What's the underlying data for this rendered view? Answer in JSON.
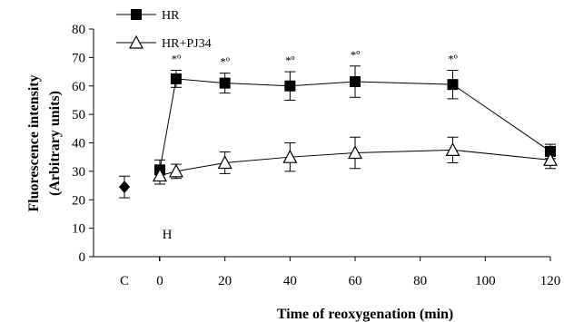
{
  "chart_data": {
    "type": "line",
    "xlabel": "Time of reoxygenation (min)",
    "ylabel": [
      "Fluorescence intensity",
      "(Arbitrary units)"
    ],
    "xlim": [
      0,
      120
    ],
    "ylim": [
      0,
      80
    ],
    "xticks": [
      0,
      20,
      40,
      60,
      80,
      100,
      120
    ],
    "yticks": [
      0,
      10,
      20,
      30,
      40,
      50,
      60,
      70,
      80
    ],
    "control": {
      "label": "C",
      "value": 24.5,
      "error": 3.8,
      "marker": "filled-diamond"
    },
    "series": [
      {
        "name": "HR",
        "marker": "filled-square",
        "x": [
          0,
          5,
          20,
          40,
          60,
          90,
          120
        ],
        "y": [
          30.5,
          62.5,
          61,
          60,
          61.5,
          60.5,
          37
        ],
        "err": [
          3.5,
          3,
          3.5,
          5,
          5.5,
          5,
          2.5
        ]
      },
      {
        "name": "HR+PJ34",
        "marker": "open-triangle",
        "x": [
          0,
          5,
          20,
          40,
          60,
          90,
          120
        ],
        "y": [
          28.5,
          30,
          33,
          35,
          36.5,
          37.5,
          34
        ],
        "err": [
          3,
          2.5,
          3.8,
          5,
          5.5,
          4.5,
          3
        ]
      }
    ],
    "significance": {
      "text": "*º",
      "x": [
        5,
        20,
        40,
        60,
        90
      ]
    },
    "annotation": {
      "text": "H",
      "x": 0,
      "y": 8
    },
    "legend": {
      "placement": "top-left"
    },
    "grid": false,
    "color": "#000000"
  }
}
